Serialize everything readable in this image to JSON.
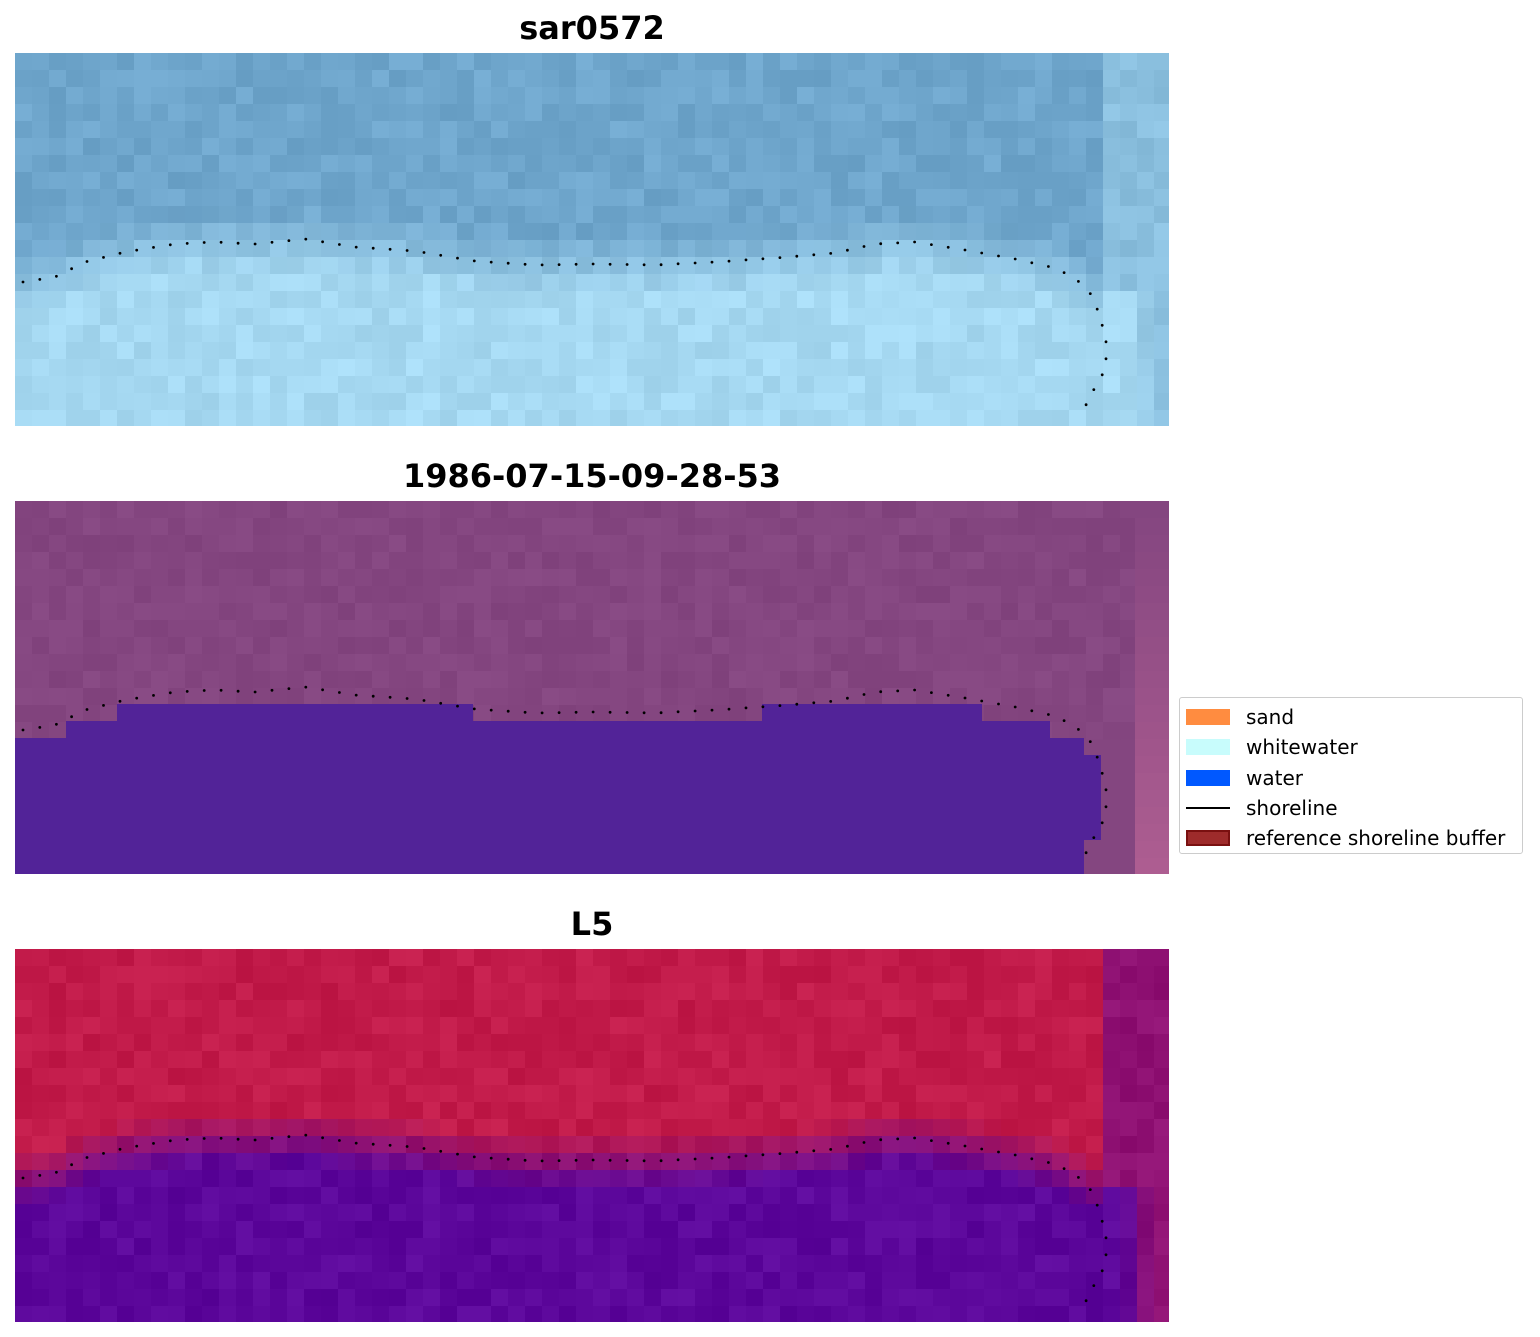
{
  "panels": [
    {
      "title": "sar0572",
      "style": "rgb"
    },
    {
      "title": "1986-07-15-09-28-53",
      "style": "classified"
    },
    {
      "title": "L5",
      "style": "index"
    }
  ],
  "colors": {
    "rgb_land": "#6fa6cc",
    "rgb_water": "#a6d9f2",
    "class_land": "#844680",
    "class_water": "#522398",
    "index_land": "#c21b4a",
    "index_water": "#5c079b"
  },
  "legend": {
    "items": [
      {
        "label": "sand",
        "kind": "patch",
        "color": "#ff8c40",
        "edge": "#ff8c40"
      },
      {
        "label": "whitewater",
        "kind": "patch",
        "color": "#c8fcfc",
        "edge": "#c8fcfc"
      },
      {
        "label": "water",
        "kind": "patch",
        "color": "#0058ff",
        "edge": "#0058ff"
      },
      {
        "label": "shoreline",
        "kind": "line",
        "color": "#000000"
      },
      {
        "label": "reference shoreline buffer",
        "kind": "patch",
        "color": "#9e2b2b",
        "edge": "#7a1010"
      }
    ]
  }
}
